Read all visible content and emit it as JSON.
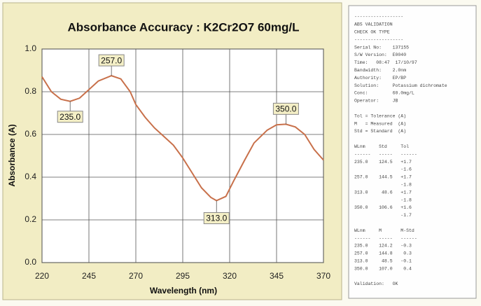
{
  "chart_data": {
    "type": "line",
    "title": "Absorbance Accuracy : K2Cr2O7 60mg/L",
    "x_label": "Wavelength (nm)",
    "y_label": "Absorbance (A)",
    "x": [
      220,
      225,
      230,
      235,
      240,
      245,
      250,
      257,
      262,
      267,
      270,
      275,
      280,
      285,
      290,
      295,
      300,
      305,
      310,
      313,
      318,
      322,
      328,
      333,
      340,
      345,
      350,
      355,
      360,
      365,
      370
    ],
    "series": [
      {
        "color": "#c8704a",
        "values": [
          0.87,
          0.8,
          0.765,
          0.755,
          0.77,
          0.81,
          0.85,
          0.875,
          0.86,
          0.8,
          0.74,
          0.68,
          0.63,
          0.59,
          0.55,
          0.49,
          0.42,
          0.35,
          0.305,
          0.29,
          0.31,
          0.38,
          0.48,
          0.56,
          0.62,
          0.645,
          0.648,
          0.635,
          0.6,
          0.53,
          0.48
        ]
      }
    ],
    "xlim": [
      220,
      370
    ],
    "xticks": [
      220,
      245,
      270,
      295,
      320,
      345,
      370
    ],
    "ylim": [
      0,
      1
    ],
    "yticks": [
      {
        "value": 0,
        "label": "0.0"
      },
      0.2,
      0.4,
      0.6,
      0.8,
      {
        "value": 1,
        "label": "1.0"
      }
    ],
    "grid": true,
    "annotations": [
      {
        "text": "257.0",
        "x": 257,
        "y": 0.875
      },
      {
        "text": "235.0",
        "x": 235,
        "y": 0.755
      },
      {
        "text": "350.0",
        "x": 350,
        "y": 0.648
      },
      {
        "text": "313.0",
        "x": 313,
        "y": 0.29
      }
    ]
  },
  "printout": {
    "lines": [
      "------------------",
      "ABS VALIDATION",
      "CHECK OK TYPE",
      "------------------",
      "Serial No:    137155",
      "S/W Version:  E0040",
      "Time:   08:47  17/10/97",
      "Bandwidth:    2.0nm",
      "Authority:    EP/BP",
      "Solution:     Potassium dichromate",
      "Conc:         60.0mg/L",
      "Operator:     JB",
      "",
      "Tol = Tolerance (A)",
      "M   = Measured  (A)",
      "Std = Standard  (A)",
      "",
      "WLnm     Std     Tol",
      "------   -----   ------",
      "235.0    124.5   +1.7",
      "                 -1.6",
      "257.0    144.5   +1.7",
      "                 -1.8",
      "313.0     48.6   +1.7",
      "                 -1.8",
      "350.0    106.6   +1.6",
      "                 -1.7",
      "",
      "WLnm     M       M-Std",
      "------   -----   ------",
      "235.0    124.2   -0.3",
      "257.0    144.8    0.3",
      "313.0     48.5   -0.1",
      "350.0    107.0    0.4",
      "",
      "Validation:   OK"
    ]
  }
}
